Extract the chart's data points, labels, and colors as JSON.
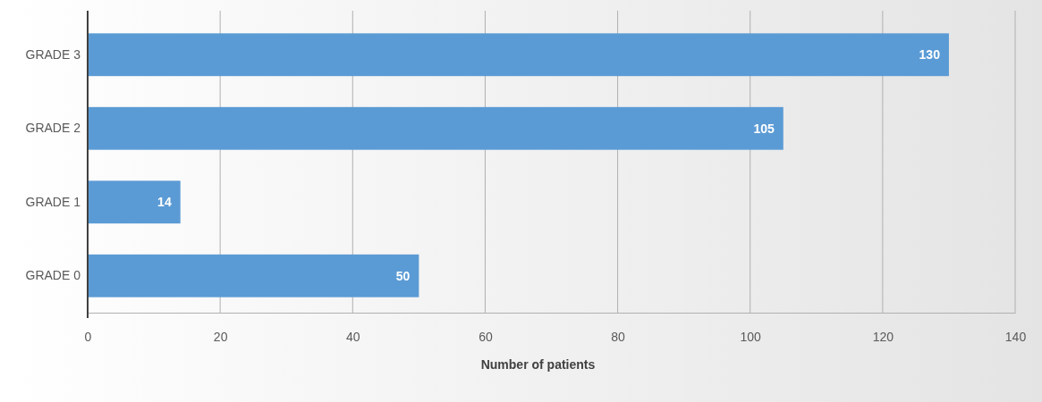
{
  "chart_data": {
    "type": "bar",
    "orientation": "horizontal",
    "categories": [
      "GRADE 3",
      "GRADE 2",
      "GRADE 1",
      "GRADE 0"
    ],
    "values": [
      130,
      105,
      14,
      50
    ],
    "color": "#5b9bd5",
    "xlabel": "Number of patients",
    "xlim": [
      0,
      140
    ],
    "xticks": [
      0,
      20,
      40,
      60,
      80,
      100,
      120,
      140
    ],
    "grid": "x",
    "data_labels": true
  }
}
